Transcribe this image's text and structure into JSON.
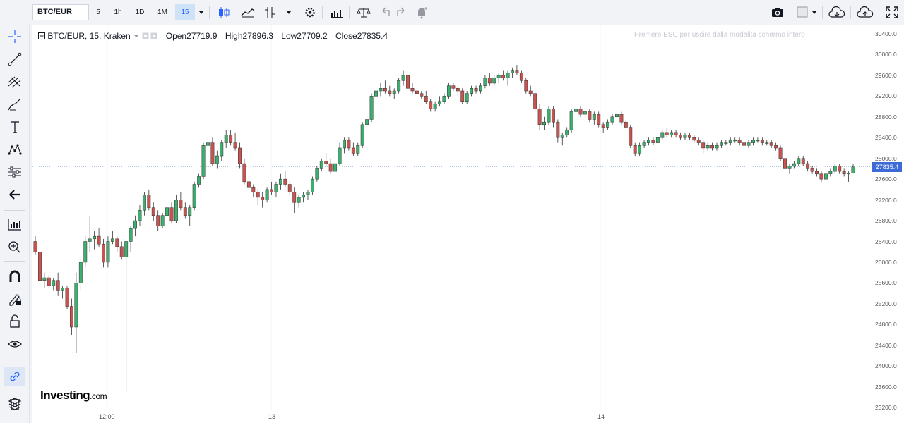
{
  "topbar": {
    "symbol": "BTC/EUR",
    "intervals": [
      "5",
      "1h",
      "1D",
      "1M",
      "15"
    ],
    "active_interval": "15"
  },
  "legend": {
    "title": "BTC/EUR, 15, Kraken",
    "open_label": "Open",
    "open_value": "27719.9",
    "high_label": "High",
    "high_value": "27896.3",
    "low_label": "Low",
    "low_value": "27709.2",
    "close_label": "Close",
    "close_value": "27835.4"
  },
  "esc_hint": "Premere ESC per uscire dalla modalità schermo intero",
  "logo": {
    "main": "Investing",
    "suffix": ".com"
  },
  "price_axis": [
    "30400.0",
    "30000.0",
    "29600.0",
    "29200.0",
    "28800.0",
    "28400.0",
    "28000.0",
    "27600.0",
    "27200.0",
    "26800.0",
    "26400.0",
    "26000.0",
    "25600.0",
    "25200.0",
    "24800.0",
    "24400.0",
    "24000.0",
    "23600.0",
    "23200.0"
  ],
  "current_price": "27835.4",
  "time_axis": [
    "12:00",
    "13",
    "14"
  ],
  "colors": {
    "up": "#26a69a",
    "down": "#ef5350",
    "up_fill": "#3dae6e",
    "down_fill": "#c9534f",
    "accent": "#2962ff",
    "price_tag": "#3d6ad6"
  },
  "chart_data": {
    "type": "candlestick",
    "title": "BTC/EUR, 15, Kraken",
    "xlabel": "",
    "ylabel": "",
    "ylim": [
      23000,
      30600
    ],
    "x_ticks": [
      "12:00",
      "13",
      "14"
    ],
    "y_ticks": [
      23200,
      23600,
      24000,
      24400,
      24800,
      25200,
      25600,
      26000,
      26400,
      26800,
      27200,
      27600,
      28000,
      28400,
      28800,
      29200,
      29600,
      30000,
      30400
    ],
    "current_price": 27835.4,
    "candles": [
      {
        "o": 26400,
        "h": 26500,
        "l": 26150,
        "c": 26200
      },
      {
        "o": 26200,
        "h": 26250,
        "l": 25500,
        "c": 25650
      },
      {
        "o": 25650,
        "h": 25800,
        "l": 25500,
        "c": 25700
      },
      {
        "o": 25700,
        "h": 25750,
        "l": 25500,
        "c": 25550
      },
      {
        "o": 25550,
        "h": 25700,
        "l": 25450,
        "c": 25650
      },
      {
        "o": 25650,
        "h": 25800,
        "l": 25350,
        "c": 25450
      },
      {
        "o": 25450,
        "h": 25550,
        "l": 25300,
        "c": 25500
      },
      {
        "o": 25500,
        "h": 25550,
        "l": 25100,
        "c": 25150
      },
      {
        "o": 25150,
        "h": 25300,
        "l": 24600,
        "c": 24750
      },
      {
        "o": 24750,
        "h": 25800,
        "l": 24250,
        "c": 25600
      },
      {
        "o": 25600,
        "h": 26100,
        "l": 25450,
        "c": 26000
      },
      {
        "o": 26000,
        "h": 26500,
        "l": 25900,
        "c": 26400
      },
      {
        "o": 26400,
        "h": 26900,
        "l": 26200,
        "c": 26450
      },
      {
        "o": 26450,
        "h": 26600,
        "l": 26250,
        "c": 26500
      },
      {
        "o": 26500,
        "h": 26650,
        "l": 26300,
        "c": 26350
      },
      {
        "o": 26350,
        "h": 26450,
        "l": 25900,
        "c": 26000
      },
      {
        "o": 26000,
        "h": 26500,
        "l": 25900,
        "c": 26400
      },
      {
        "o": 26400,
        "h": 26600,
        "l": 26350,
        "c": 26450
      },
      {
        "o": 26450,
        "h": 26500,
        "l": 26200,
        "c": 26300
      },
      {
        "o": 26300,
        "h": 26400,
        "l": 26050,
        "c": 26100
      },
      {
        "o": 26100,
        "h": 26450,
        "l": 23500,
        "c": 26400
      },
      {
        "o": 26400,
        "h": 26700,
        "l": 26200,
        "c": 26650
      },
      {
        "o": 26650,
        "h": 26900,
        "l": 26500,
        "c": 26800
      },
      {
        "o": 26800,
        "h": 27100,
        "l": 26700,
        "c": 27000
      },
      {
        "o": 27000,
        "h": 27350,
        "l": 26900,
        "c": 27300
      },
      {
        "o": 27300,
        "h": 27400,
        "l": 27000,
        "c": 27050
      },
      {
        "o": 27050,
        "h": 27150,
        "l": 26800,
        "c": 26900
      },
      {
        "o": 26900,
        "h": 27000,
        "l": 26600,
        "c": 26700
      },
      {
        "o": 26700,
        "h": 26950,
        "l": 26650,
        "c": 26900
      },
      {
        "o": 26900,
        "h": 27100,
        "l": 26800,
        "c": 27050
      },
      {
        "o": 27050,
        "h": 27150,
        "l": 26750,
        "c": 26800
      },
      {
        "o": 26800,
        "h": 27300,
        "l": 26750,
        "c": 27200
      },
      {
        "o": 27200,
        "h": 27350,
        "l": 27000,
        "c": 27050
      },
      {
        "o": 27050,
        "h": 27150,
        "l": 26850,
        "c": 26900
      },
      {
        "o": 26900,
        "h": 27100,
        "l": 26700,
        "c": 27050
      },
      {
        "o": 27050,
        "h": 27550,
        "l": 27000,
        "c": 27500
      },
      {
        "o": 27500,
        "h": 27700,
        "l": 27450,
        "c": 27650
      },
      {
        "o": 27650,
        "h": 28300,
        "l": 27600,
        "c": 28250
      },
      {
        "o": 28250,
        "h": 28400,
        "l": 28150,
        "c": 28300
      },
      {
        "o": 28300,
        "h": 28400,
        "l": 27850,
        "c": 27900
      },
      {
        "o": 27900,
        "h": 28150,
        "l": 27800,
        "c": 28050
      },
      {
        "o": 28050,
        "h": 28350,
        "l": 27950,
        "c": 28300
      },
      {
        "o": 28300,
        "h": 28550,
        "l": 28200,
        "c": 28450
      },
      {
        "o": 28450,
        "h": 28550,
        "l": 28250,
        "c": 28300
      },
      {
        "o": 28300,
        "h": 28500,
        "l": 28150,
        "c": 28200
      },
      {
        "o": 28200,
        "h": 28300,
        "l": 27800,
        "c": 27900
      },
      {
        "o": 27900,
        "h": 28000,
        "l": 27500,
        "c": 27550
      },
      {
        "o": 27550,
        "h": 27650,
        "l": 27400,
        "c": 27450
      },
      {
        "o": 27450,
        "h": 27500,
        "l": 27250,
        "c": 27350
      },
      {
        "o": 27350,
        "h": 27400,
        "l": 27100,
        "c": 27250
      },
      {
        "o": 27250,
        "h": 27350,
        "l": 27050,
        "c": 27200
      },
      {
        "o": 27200,
        "h": 27450,
        "l": 27150,
        "c": 27400
      },
      {
        "o": 27400,
        "h": 27550,
        "l": 27300,
        "c": 27350
      },
      {
        "o": 27350,
        "h": 27550,
        "l": 27250,
        "c": 27500
      },
      {
        "o": 27500,
        "h": 27700,
        "l": 27400,
        "c": 27600
      },
      {
        "o": 27600,
        "h": 27750,
        "l": 27450,
        "c": 27500
      },
      {
        "o": 27500,
        "h": 27550,
        "l": 27300,
        "c": 27350
      },
      {
        "o": 27350,
        "h": 27450,
        "l": 26950,
        "c": 27150
      },
      {
        "o": 27150,
        "h": 27300,
        "l": 27050,
        "c": 27250
      },
      {
        "o": 27250,
        "h": 27350,
        "l": 27150,
        "c": 27300
      },
      {
        "o": 27300,
        "h": 27400,
        "l": 27200,
        "c": 27350
      },
      {
        "o": 27350,
        "h": 27650,
        "l": 27300,
        "c": 27600
      },
      {
        "o": 27600,
        "h": 27850,
        "l": 27550,
        "c": 27800
      },
      {
        "o": 27800,
        "h": 28000,
        "l": 27750,
        "c": 27950
      },
      {
        "o": 27950,
        "h": 28100,
        "l": 27850,
        "c": 27900
      },
      {
        "o": 27900,
        "h": 28000,
        "l": 27700,
        "c": 27750
      },
      {
        "o": 27750,
        "h": 27950,
        "l": 27650,
        "c": 27900
      },
      {
        "o": 27900,
        "h": 28300,
        "l": 27850,
        "c": 28200
      },
      {
        "o": 28200,
        "h": 28400,
        "l": 28100,
        "c": 28350
      },
      {
        "o": 28350,
        "h": 28400,
        "l": 28150,
        "c": 28200
      },
      {
        "o": 28200,
        "h": 28300,
        "l": 28050,
        "c": 28100
      },
      {
        "o": 28100,
        "h": 28300,
        "l": 28050,
        "c": 28250
      },
      {
        "o": 28250,
        "h": 28700,
        "l": 28200,
        "c": 28650
      },
      {
        "o": 28650,
        "h": 28800,
        "l": 28550,
        "c": 28750
      },
      {
        "o": 28750,
        "h": 29250,
        "l": 28700,
        "c": 29200
      },
      {
        "o": 29200,
        "h": 29400,
        "l": 29100,
        "c": 29300
      },
      {
        "o": 29300,
        "h": 29450,
        "l": 29200,
        "c": 29350
      },
      {
        "o": 29350,
        "h": 29500,
        "l": 29250,
        "c": 29300
      },
      {
        "o": 29300,
        "h": 29400,
        "l": 29200,
        "c": 29250
      },
      {
        "o": 29250,
        "h": 29350,
        "l": 29150,
        "c": 29300
      },
      {
        "o": 29300,
        "h": 29550,
        "l": 29250,
        "c": 29500
      },
      {
        "o": 29500,
        "h": 29700,
        "l": 29400,
        "c": 29600
      },
      {
        "o": 29600,
        "h": 29650,
        "l": 29300,
        "c": 29350
      },
      {
        "o": 29350,
        "h": 29450,
        "l": 29250,
        "c": 29300
      },
      {
        "o": 29300,
        "h": 29400,
        "l": 29200,
        "c": 29250
      },
      {
        "o": 29250,
        "h": 29300,
        "l": 29150,
        "c": 29200
      },
      {
        "o": 29200,
        "h": 29300,
        "l": 29050,
        "c": 29100
      },
      {
        "o": 29100,
        "h": 29150,
        "l": 28900,
        "c": 28950
      },
      {
        "o": 28950,
        "h": 29100,
        "l": 28900,
        "c": 29050
      },
      {
        "o": 29050,
        "h": 29200,
        "l": 29000,
        "c": 29100
      },
      {
        "o": 29100,
        "h": 29250,
        "l": 29050,
        "c": 29200
      },
      {
        "o": 29200,
        "h": 29450,
        "l": 29150,
        "c": 29400
      },
      {
        "o": 29400,
        "h": 29450,
        "l": 29300,
        "c": 29350
      },
      {
        "o": 29350,
        "h": 29400,
        "l": 29200,
        "c": 29300
      },
      {
        "o": 29300,
        "h": 29350,
        "l": 29050,
        "c": 29100
      },
      {
        "o": 29100,
        "h": 29300,
        "l": 29050,
        "c": 29250
      },
      {
        "o": 29250,
        "h": 29400,
        "l": 29200,
        "c": 29350
      },
      {
        "o": 29350,
        "h": 29400,
        "l": 29250,
        "c": 29300
      },
      {
        "o": 29300,
        "h": 29450,
        "l": 29250,
        "c": 29400
      },
      {
        "o": 29400,
        "h": 29600,
        "l": 29350,
        "c": 29550
      },
      {
        "o": 29550,
        "h": 29650,
        "l": 29400,
        "c": 29450
      },
      {
        "o": 29450,
        "h": 29600,
        "l": 29400,
        "c": 29550
      },
      {
        "o": 29550,
        "h": 29650,
        "l": 29450,
        "c": 29600
      },
      {
        "o": 29600,
        "h": 29700,
        "l": 29500,
        "c": 29550
      },
      {
        "o": 29550,
        "h": 29700,
        "l": 29400,
        "c": 29650
      },
      {
        "o": 29650,
        "h": 29750,
        "l": 29550,
        "c": 29700
      },
      {
        "o": 29700,
        "h": 29800,
        "l": 29600,
        "c": 29650
      },
      {
        "o": 29650,
        "h": 29700,
        "l": 29450,
        "c": 29500
      },
      {
        "o": 29500,
        "h": 29550,
        "l": 29250,
        "c": 29300
      },
      {
        "o": 29300,
        "h": 29400,
        "l": 29200,
        "c": 29250
      },
      {
        "o": 29250,
        "h": 29300,
        "l": 28900,
        "c": 28950
      },
      {
        "o": 28950,
        "h": 29050,
        "l": 28550,
        "c": 28650
      },
      {
        "o": 28650,
        "h": 28800,
        "l": 28550,
        "c": 28700
      },
      {
        "o": 28700,
        "h": 29000,
        "l": 28650,
        "c": 28950
      },
      {
        "o": 28950,
        "h": 29000,
        "l": 28600,
        "c": 28700
      },
      {
        "o": 28700,
        "h": 28750,
        "l": 28300,
        "c": 28400
      },
      {
        "o": 28400,
        "h": 28500,
        "l": 28250,
        "c": 28450
      },
      {
        "o": 28450,
        "h": 28600,
        "l": 28400,
        "c": 28550
      },
      {
        "o": 28550,
        "h": 28950,
        "l": 28500,
        "c": 28900
      },
      {
        "o": 28900,
        "h": 29000,
        "l": 28800,
        "c": 28950
      },
      {
        "o": 28950,
        "h": 29000,
        "l": 28800,
        "c": 28850
      },
      {
        "o": 28850,
        "h": 28950,
        "l": 28750,
        "c": 28900
      },
      {
        "o": 28900,
        "h": 28950,
        "l": 28700,
        "c": 28750
      },
      {
        "o": 28750,
        "h": 28900,
        "l": 28650,
        "c": 28850
      },
      {
        "o": 28850,
        "h": 28900,
        "l": 28600,
        "c": 28650
      },
      {
        "o": 28650,
        "h": 28700,
        "l": 28500,
        "c": 28600
      },
      {
        "o": 28600,
        "h": 28750,
        "l": 28550,
        "c": 28700
      },
      {
        "o": 28700,
        "h": 28850,
        "l": 28650,
        "c": 28800
      },
      {
        "o": 28800,
        "h": 28900,
        "l": 28700,
        "c": 28850
      },
      {
        "o": 28850,
        "h": 28900,
        "l": 28650,
        "c": 28700
      },
      {
        "o": 28700,
        "h": 28750,
        "l": 28550,
        "c": 28600
      },
      {
        "o": 28600,
        "h": 28650,
        "l": 28200,
        "c": 28250
      },
      {
        "o": 28250,
        "h": 28300,
        "l": 28050,
        "c": 28100
      },
      {
        "o": 28100,
        "h": 28300,
        "l": 28050,
        "c": 28250
      },
      {
        "o": 28250,
        "h": 28350,
        "l": 28200,
        "c": 28300
      },
      {
        "o": 28300,
        "h": 28400,
        "l": 28250,
        "c": 28350
      },
      {
        "o": 28350,
        "h": 28400,
        "l": 28250,
        "c": 28300
      },
      {
        "o": 28300,
        "h": 28450,
        "l": 28250,
        "c": 28400
      },
      {
        "o": 28400,
        "h": 28550,
        "l": 28350,
        "c": 28500
      },
      {
        "o": 28500,
        "h": 28600,
        "l": 28400,
        "c": 28450
      },
      {
        "o": 28450,
        "h": 28550,
        "l": 28400,
        "c": 28500
      },
      {
        "o": 28500,
        "h": 28550,
        "l": 28400,
        "c": 28450
      },
      {
        "o": 28450,
        "h": 28500,
        "l": 28350,
        "c": 28400
      },
      {
        "o": 28400,
        "h": 28500,
        "l": 28350,
        "c": 28450
      },
      {
        "o": 28450,
        "h": 28500,
        "l": 28350,
        "c": 28400
      },
      {
        "o": 28400,
        "h": 28450,
        "l": 28300,
        "c": 28350
      },
      {
        "o": 28350,
        "h": 28400,
        "l": 28250,
        "c": 28300
      },
      {
        "o": 28300,
        "h": 28350,
        "l": 28100,
        "c": 28200
      },
      {
        "o": 28200,
        "h": 28300,
        "l": 28150,
        "c": 28250
      },
      {
        "o": 28250,
        "h": 28300,
        "l": 28150,
        "c": 28200
      },
      {
        "o": 28200,
        "h": 28300,
        "l": 28150,
        "c": 28250
      },
      {
        "o": 28250,
        "h": 28350,
        "l": 28200,
        "c": 28300
      },
      {
        "o": 28300,
        "h": 28350,
        "l": 28250,
        "c": 28300
      },
      {
        "o": 28300,
        "h": 28400,
        "l": 28250,
        "c": 28350
      },
      {
        "o": 28350,
        "h": 28400,
        "l": 28300,
        "c": 28350
      },
      {
        "o": 28350,
        "h": 28400,
        "l": 28250,
        "c": 28300
      },
      {
        "o": 28300,
        "h": 28350,
        "l": 28200,
        "c": 28250
      },
      {
        "o": 28250,
        "h": 28350,
        "l": 28200,
        "c": 28300
      },
      {
        "o": 28300,
        "h": 28400,
        "l": 28250,
        "c": 28350
      },
      {
        "o": 28350,
        "h": 28400,
        "l": 28300,
        "c": 28350
      },
      {
        "o": 28350,
        "h": 28400,
        "l": 28250,
        "c": 28300
      },
      {
        "o": 28300,
        "h": 28350,
        "l": 28250,
        "c": 28300
      },
      {
        "o": 28300,
        "h": 28350,
        "l": 28200,
        "c": 28250
      },
      {
        "o": 28250,
        "h": 28300,
        "l": 28150,
        "c": 28200
      },
      {
        "o": 28200,
        "h": 28250,
        "l": 27950,
        "c": 28000
      },
      {
        "o": 28000,
        "h": 28050,
        "l": 27750,
        "c": 27800
      },
      {
        "o": 27800,
        "h": 27900,
        "l": 27700,
        "c": 27850
      },
      {
        "o": 27850,
        "h": 27950,
        "l": 27800,
        "c": 27900
      },
      {
        "o": 27900,
        "h": 28050,
        "l": 27850,
        "c": 28000
      },
      {
        "o": 28000,
        "h": 28050,
        "l": 27850,
        "c": 27900
      },
      {
        "o": 27900,
        "h": 27950,
        "l": 27750,
        "c": 27800
      },
      {
        "o": 27800,
        "h": 27850,
        "l": 27700,
        "c": 27750
      },
      {
        "o": 27750,
        "h": 27800,
        "l": 27650,
        "c": 27700
      },
      {
        "o": 27700,
        "h": 27750,
        "l": 27550,
        "c": 27600
      },
      {
        "o": 27600,
        "h": 27750,
        "l": 27550,
        "c": 27700
      },
      {
        "o": 27700,
        "h": 27800,
        "l": 27650,
        "c": 27750
      },
      {
        "o": 27750,
        "h": 27900,
        "l": 27700,
        "c": 27850
      },
      {
        "o": 27850,
        "h": 27900,
        "l": 27700,
        "c": 27750
      },
      {
        "o": 27750,
        "h": 27800,
        "l": 27650,
        "c": 27700
      },
      {
        "o": 27700,
        "h": 27750,
        "l": 27550,
        "c": 27720
      },
      {
        "o": 27719.9,
        "h": 27896.3,
        "l": 27709.2,
        "c": 27835.4
      }
    ]
  }
}
